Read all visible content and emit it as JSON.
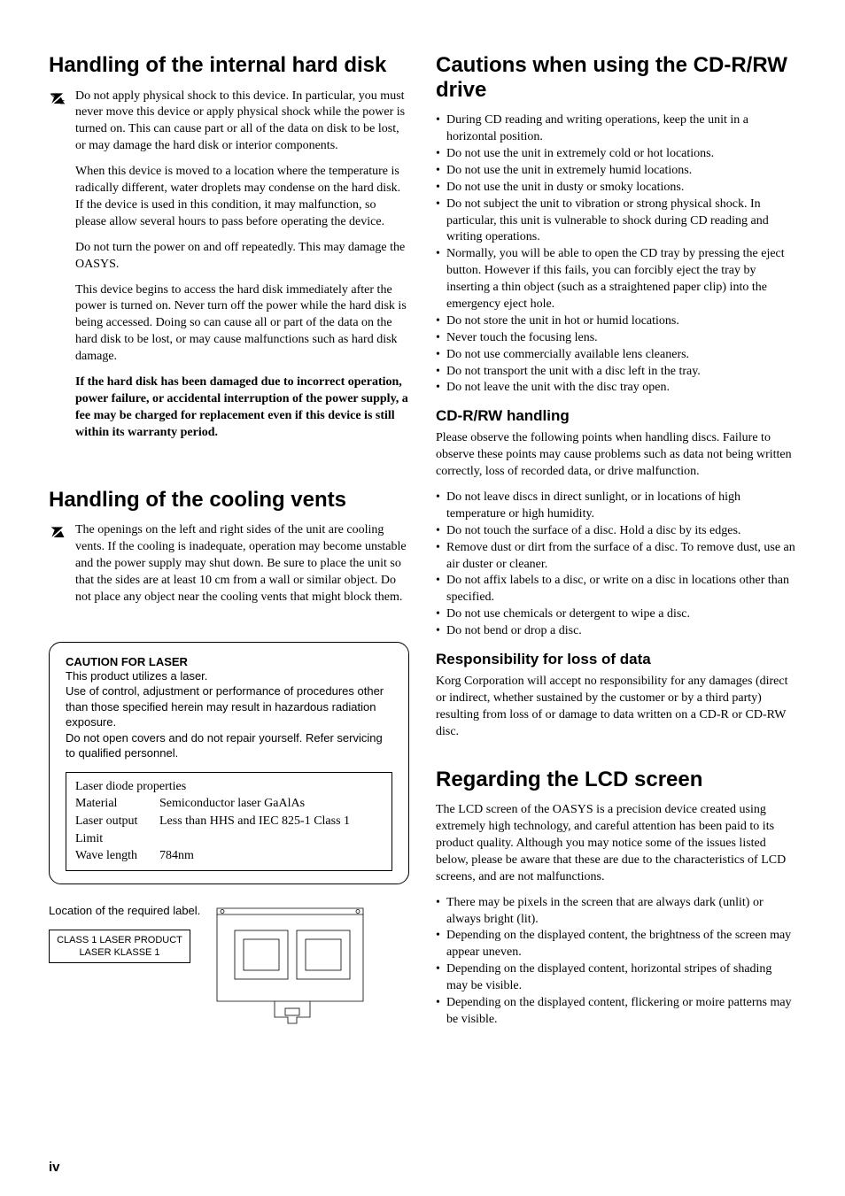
{
  "left": {
    "h1": "Handling of the internal hard disk",
    "p1": "Do not apply physical shock to this device. In particular, you must never move this device or apply physical shock while the power is turned on. This can cause part or all of the data on disk to be lost, or may damage the hard disk or interior components.",
    "p2": "When this device is moved to a location where the temperature is radically different, water droplets may condense on the hard disk. If the device is used in this condition, it may malfunction, so please allow several hours to pass before operating the device.",
    "p3": "Do not turn the power on and off repeatedly. This may damage the OASYS.",
    "p4": "This device begins to access the hard disk immediately after the power is turned on. Never turn off the power while the hard disk is being accessed. Doing so can cause all or part of the data on the hard disk to be lost, or may cause malfunctions such as hard disk damage.",
    "p5": "If the hard disk has been damaged due to incorrect operation, power failure, or accidental interruption of the power supply, a fee may be charged for replacement even if this device is still within its warranty period.",
    "h2": "Handling of the cooling vents",
    "p6": "The openings on the left and right sides of the unit are cooling vents. If the cooling is inadequate, operation may become unstable and the power supply may shut down. Be sure to place the unit so that the sides are at least 10 cm from a wall or similar object. Do not place any object near the cooling vents that might block them.",
    "caution": {
      "title": "CAUTION FOR LASER",
      "body": "This product utilizes a laser.\nUse of control, adjustment or performance of procedures other than those specified herein may result in hazardous radiation exposure.\nDo not open covers and do not repair yourself. Refer servicing to qualified personnel.",
      "props_title": "Laser diode properties",
      "rows": [
        {
          "k": "Material",
          "v": "Semiconductor laser GaAlAs"
        },
        {
          "k": "Laser output",
          "v": "Less than HHS and IEC 825-1 Class 1"
        },
        {
          "k": "Limit",
          "v": ""
        },
        {
          "k": "Wave length",
          "v": "784nm"
        }
      ]
    },
    "location_label": "Location of the required label.",
    "laser_class_1": "CLASS 1 LASER PRODUCT",
    "laser_class_2": "LASER KLASSE 1"
  },
  "right": {
    "h1": "Cautions when using the CD-R/RW drive",
    "list1": [
      "During CD reading and writing operations, keep the unit in a horizontal position.",
      "Do not use the unit in extremely cold or hot locations.",
      "Do not use the unit in extremely humid locations.",
      "Do not use the unit in dusty or smoky locations.",
      "Do not subject the unit to vibration or strong physical shock. In particular, this unit is vulnerable to shock during CD reading and writing operations.",
      "Normally, you will be able to open the CD tray by pressing the eject button. However if this fails, you can forcibly eject the tray by inserting a thin object (such as a straightened paper clip) into the emergency eject hole.",
      "Do not store the unit in hot or humid locations.",
      "Never touch the focusing lens.",
      "Do not use commercially available lens cleaners.",
      "Do not transport the unit with a disc left in the tray.",
      "Do not leave the unit with the disc tray open."
    ],
    "h2": "CD-R/RW handling",
    "p1": "Please observe the following points when handling discs. Failure to observe these points may cause problems such as data not being written correctly, loss of recorded data, or drive malfunction.",
    "list2": [
      "Do not leave discs in direct sunlight, or in locations of high temperature or high humidity.",
      "Do not touch the surface of a disc. Hold a disc by its edges.",
      "Remove dust or dirt from the surface of a disc. To remove dust, use an air duster or cleaner.",
      "Do not affix labels to a disc, or write on a disc in locations other than specified.",
      "Do not use chemicals or detergent to wipe a disc.",
      "Do not bend or drop a disc."
    ],
    "h3": "Responsibility for loss of data",
    "p2": "Korg Corporation will accept no responsibility for any damages (direct or indirect, whether sustained by the customer or by a third party) resulting from loss of or damage to data written on a CD-R or CD-RW disc.",
    "h4": "Regarding the LCD screen",
    "p3": "The LCD screen of the OASYS is a precision device created using extremely high technology, and careful attention has been paid to its product quality. Although you may notice some of the issues listed below, please be aware that these are due to the characteristics of LCD screens, and are not malfunctions.",
    "list3": [
      "There may be pixels in the screen that are always dark (unlit) or always bright (lit).",
      "Depending on the displayed content, the brightness of the screen may appear uneven.",
      "Depending on the displayed content, horizontal stripes of shading may be visible.",
      "Depending on the displayed content, flickering or moire patterns may be visible."
    ]
  },
  "page_num": "iv"
}
